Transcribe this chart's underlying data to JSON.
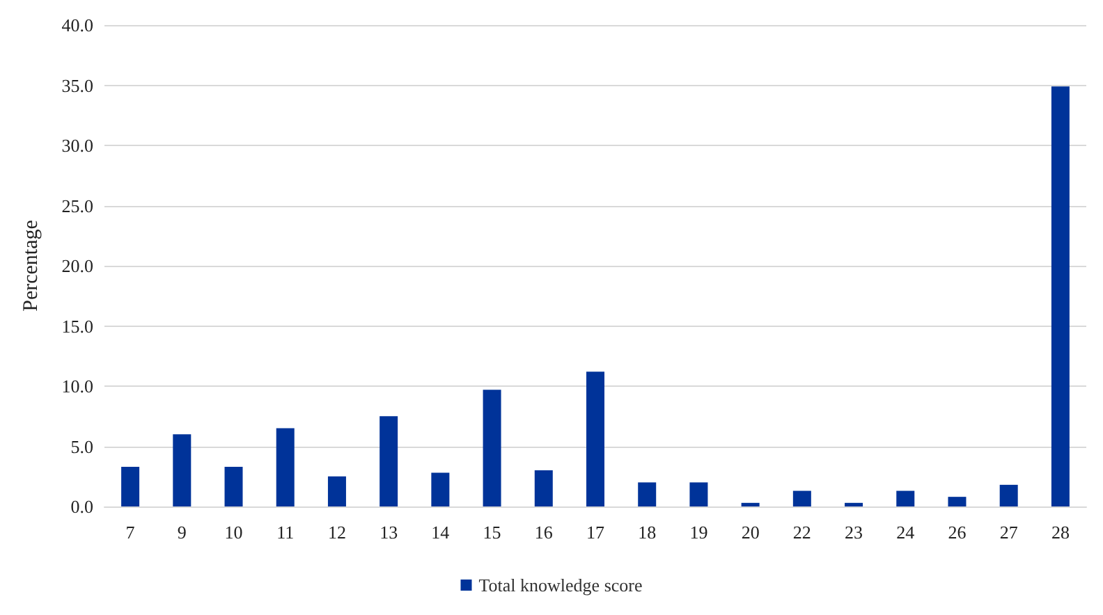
{
  "chart_data": {
    "type": "bar",
    "ylabel": "Percentage",
    "categories": [
      "7",
      "9",
      "10",
      "11",
      "12",
      "13",
      "14",
      "15",
      "16",
      "17",
      "18",
      "19",
      "20",
      "22",
      "23",
      "24",
      "26",
      "27",
      "28"
    ],
    "series": [
      {
        "name": "Total knowledge score",
        "color": "#003399",
        "values": [
          3.3,
          6.0,
          3.3,
          6.5,
          2.5,
          7.5,
          2.8,
          9.7,
          3.0,
          11.2,
          2.0,
          2.0,
          0.3,
          1.3,
          0.3,
          1.3,
          0.8,
          1.8,
          34.9
        ]
      }
    ],
    "ylim": [
      0,
      40
    ],
    "yticks": [
      {
        "value": 0,
        "label": "0.0"
      },
      {
        "value": 5,
        "label": "5.0"
      },
      {
        "value": 10,
        "label": "10.0"
      },
      {
        "value": 15,
        "label": "15.0"
      },
      {
        "value": 20,
        "label": "20.0"
      },
      {
        "value": 25,
        "label": "25.0"
      },
      {
        "value": 30,
        "label": "30.0"
      },
      {
        "value": 35,
        "label": "35.0"
      },
      {
        "value": 40,
        "label": "40.0"
      }
    ],
    "grid": "y",
    "legend": "bottom"
  }
}
